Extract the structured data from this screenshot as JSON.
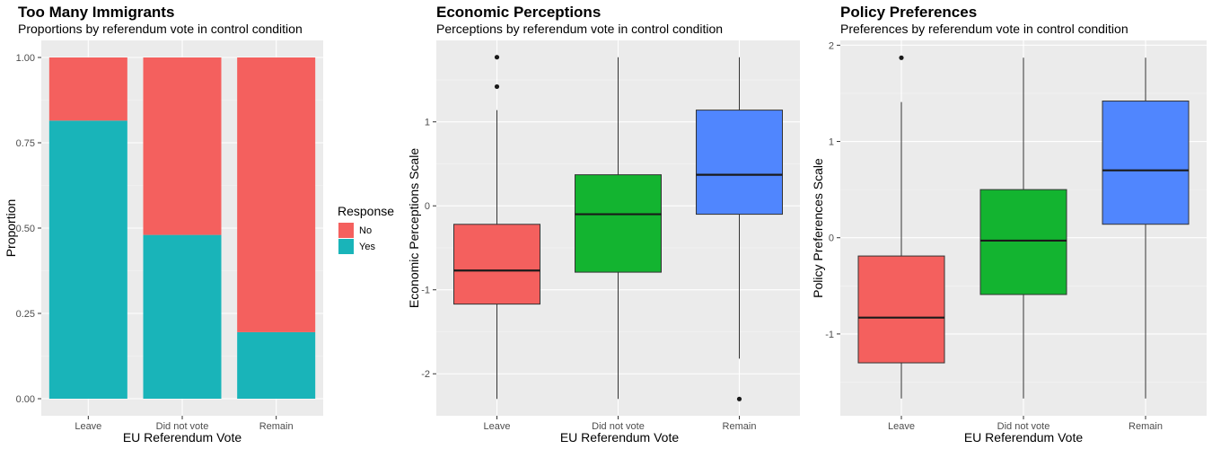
{
  "chart_data": [
    {
      "type": "bar",
      "stacked": true,
      "title": "Too Many Immigrants",
      "subtitle": "Proportions by referendum vote in control condition",
      "xlabel": "EU Referendum Vote",
      "ylabel": "Proportion",
      "categories": [
        "Leave",
        "Did not vote",
        "Remain"
      ],
      "series": [
        {
          "name": "Yes",
          "color": "#19b4b9",
          "values": [
            0.815,
            0.48,
            0.195
          ]
        },
        {
          "name": "No",
          "color": "#f4605e",
          "values": [
            0.185,
            0.52,
            0.805
          ]
        }
      ],
      "ylim": [
        -0.05,
        1.05
      ],
      "yticks": [
        0,
        0.25,
        0.5,
        0.75,
        1
      ],
      "ytick_labels": [
        "0.00",
        "0.25",
        "0.50",
        "0.75",
        "1.00"
      ],
      "legend": {
        "title": "Response",
        "position": "right",
        "entries": [
          "No",
          "Yes"
        ]
      },
      "grid": true
    },
    {
      "type": "boxplot",
      "title": "Economic Perceptions",
      "subtitle": "Perceptions by referendum vote in control condition",
      "xlabel": "EU Referendum Vote",
      "ylabel": "Economic Perceptions Scale",
      "categories": [
        "Leave",
        "Did not vote",
        "Remain"
      ],
      "colors": [
        "#f4605e",
        "#13b430",
        "#5086fe"
      ],
      "boxes": [
        {
          "whisker_low": -2.3,
          "q1": -1.17,
          "median": -0.77,
          "q3": -0.22,
          "whisker_high": 1.14,
          "outliers": [
            1.42,
            1.77
          ]
        },
        {
          "whisker_low": -2.3,
          "q1": -0.79,
          "median": -0.1,
          "q3": 0.37,
          "whisker_high": 1.77,
          "outliers": []
        },
        {
          "whisker_low": -1.82,
          "q1": -0.1,
          "median": 0.37,
          "q3": 1.14,
          "whisker_high": 1.77,
          "outliers": [
            -2.3
          ]
        }
      ],
      "ylim": [
        -2.5,
        1.97
      ],
      "yticks": [
        -2,
        -1,
        0,
        1
      ],
      "ytick_labels": [
        "-2",
        "-1",
        "0",
        "1"
      ],
      "grid": true
    },
    {
      "type": "boxplot",
      "title": "Policy Preferences",
      "subtitle": "Preferences by referendum vote in control condition",
      "xlabel": "EU Referendum Vote",
      "ylabel": "Policy Preferences Scale",
      "categories": [
        "Leave",
        "Did not vote",
        "Remain"
      ],
      "colors": [
        "#f4605e",
        "#13b430",
        "#5086fe"
      ],
      "boxes": [
        {
          "whisker_low": -1.67,
          "q1": -1.3,
          "median": -0.83,
          "q3": -0.19,
          "whisker_high": 1.41,
          "outliers": [
            1.87
          ]
        },
        {
          "whisker_low": -1.67,
          "q1": -0.59,
          "median": -0.03,
          "q3": 0.5,
          "whisker_high": 1.87,
          "outliers": []
        },
        {
          "whisker_low": -1.67,
          "q1": 0.14,
          "median": 0.7,
          "q3": 1.42,
          "whisker_high": 1.87,
          "outliers": []
        }
      ],
      "ylim": [
        -1.85,
        2.05
      ],
      "yticks": [
        -1,
        0,
        1,
        2
      ],
      "ytick_labels": [
        "-1",
        "0",
        "1",
        "2"
      ],
      "grid": true
    }
  ]
}
